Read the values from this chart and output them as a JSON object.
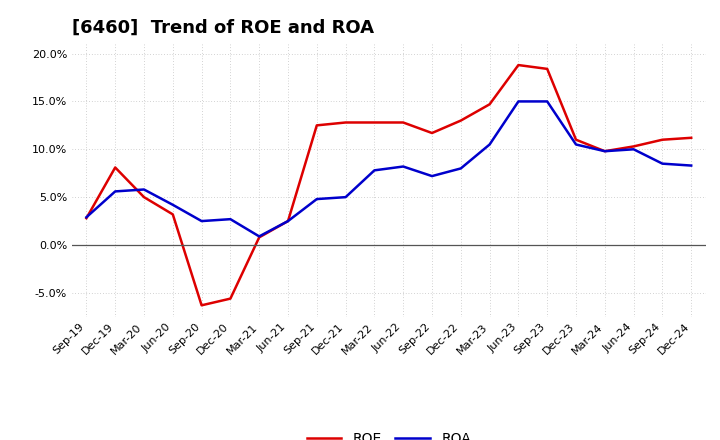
{
  "title": "[6460]  Trend of ROE and ROA",
  "labels": [
    "Sep-19",
    "Dec-19",
    "Mar-20",
    "Jun-20",
    "Sep-20",
    "Dec-20",
    "Mar-21",
    "Jun-21",
    "Sep-21",
    "Dec-21",
    "Mar-22",
    "Jun-22",
    "Sep-22",
    "Dec-22",
    "Mar-23",
    "Jun-23",
    "Sep-23",
    "Dec-23",
    "Mar-24",
    "Jun-24",
    "Sep-24",
    "Dec-24"
  ],
  "roe": [
    2.8,
    8.1,
    5.0,
    3.2,
    -6.3,
    -5.6,
    0.8,
    2.5,
    12.5,
    12.8,
    12.8,
    12.8,
    11.7,
    13.0,
    14.7,
    18.8,
    18.4,
    11.0,
    9.8,
    10.3,
    11.0,
    11.2
  ],
  "roa": [
    2.9,
    5.6,
    5.8,
    4.2,
    2.5,
    2.7,
    0.9,
    2.5,
    4.8,
    5.0,
    7.8,
    8.2,
    7.2,
    8.0,
    10.5,
    15.0,
    15.0,
    10.5,
    9.8,
    10.0,
    8.5,
    8.3
  ],
  "roe_color": "#dd0000",
  "roa_color": "#0000cc",
  "ylim": [
    -7.5,
    21.0
  ],
  "yticks": [
    -5.0,
    0.0,
    5.0,
    10.0,
    15.0,
    20.0
  ],
  "bg_color": "#ffffff",
  "plot_bg_color": "#ffffff",
  "grid_color": "#aaaaaa",
  "title_fontsize": 13,
  "axis_fontsize": 8,
  "legend_fontsize": 10
}
